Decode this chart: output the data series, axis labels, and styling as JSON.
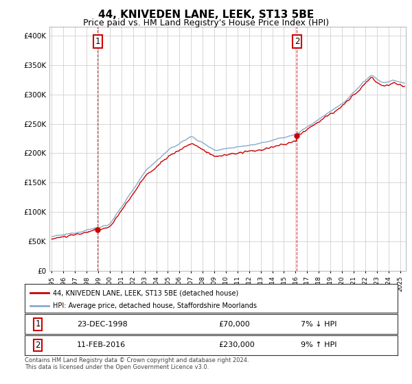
{
  "title": "44, KNIVEDEN LANE, LEEK, ST13 5BE",
  "subtitle": "Price paid vs. HM Land Registry's House Price Index (HPI)",
  "title_fontsize": 11,
  "subtitle_fontsize": 9,
  "ylabel_labels": [
    "£0",
    "£50K",
    "£100K",
    "£150K",
    "£200K",
    "£250K",
    "£300K",
    "£350K",
    "£400K"
  ],
  "ylabel_values": [
    0,
    50000,
    100000,
    150000,
    200000,
    250000,
    300000,
    350000,
    400000
  ],
  "ylim": [
    0,
    415000
  ],
  "xlim_start": 1994.8,
  "xlim_end": 2025.5,
  "xtick_years": [
    1995,
    1996,
    1997,
    1998,
    1999,
    2000,
    2001,
    2002,
    2003,
    2004,
    2005,
    2006,
    2007,
    2008,
    2009,
    2010,
    2011,
    2012,
    2013,
    2014,
    2015,
    2016,
    2017,
    2018,
    2019,
    2020,
    2021,
    2022,
    2023,
    2024,
    2025
  ],
  "sale1_x": 1998.97,
  "sale1_y": 70000,
  "sale1_label": "1",
  "sale2_x": 2016.12,
  "sale2_y": 230000,
  "sale2_label": "2",
  "line_color_property": "#cc0000",
  "line_color_hpi": "#88aacc",
  "legend_label_property": "44, KNIVEDEN LANE, LEEK, ST13 5BE (detached house)",
  "legend_label_hpi": "HPI: Average price, detached house, Staffordshire Moorlands",
  "table_row1_label": "1",
  "table_row1_date": "23-DEC-1998",
  "table_row1_price": "£70,000",
  "table_row1_hpi": "7% ↓ HPI",
  "table_row2_label": "2",
  "table_row2_date": "11-FEB-2016",
  "table_row2_price": "£230,000",
  "table_row2_hpi": "9% ↑ HPI",
  "footnote": "Contains HM Land Registry data © Crown copyright and database right 2024.\nThis data is licensed under the Open Government Licence v3.0.",
  "bg_color": "#ffffff",
  "grid_color": "#d0d0d0",
  "annotation_box_color": "#cc0000",
  "vline_color": "#cc0000",
  "vline_style": "--"
}
